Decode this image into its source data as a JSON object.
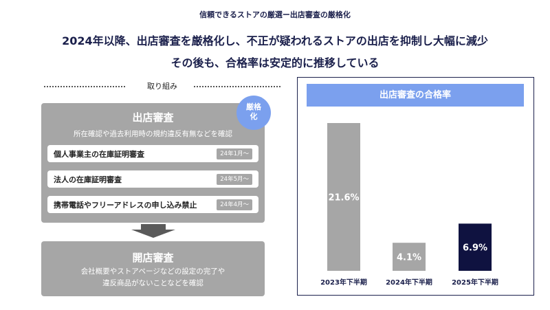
{
  "header": {
    "top_label": "信頼できるストアの厳選ー出店審査の厳格化",
    "headline_line1": "2024年以降、出店審査を厳格化し、不正が疑われるストアの出店を抑制し大幅に減少",
    "headline_line2": "その後も、合格率は安定的に推移している"
  },
  "left": {
    "section_label": "取り組み",
    "badge": [
      "厳格",
      "化"
    ],
    "main_box": {
      "title": "出店審査",
      "subtitle": "所在確認や過去利用時の規約違反有無などを確認",
      "items": [
        {
          "label": "個人事業主の在庫証明審査",
          "date": "24年1月〜"
        },
        {
          "label": "法人の在庫証明審査",
          "date": "24年5月〜"
        },
        {
          "label": "携帯電話やフリーアドレスの申し込み禁止",
          "date": "24年4月〜"
        }
      ]
    },
    "bottom_box": {
      "title": "開店審査",
      "desc_line1": "会社概要やストアページなどの設定の完了や",
      "desc_line2": "違反商品がないことなどを確認"
    }
  },
  "chart_data": {
    "type": "bar",
    "title": "出店審査の合格率",
    "categories": [
      "2023年下半期",
      "2024年下半期",
      "2025年下半期"
    ],
    "values": [
      21.6,
      4.1,
      6.9
    ],
    "value_labels": [
      "21.6%",
      "4.1%",
      "6.9%"
    ],
    "unit": "%",
    "ylim": [
      0,
      21.6
    ],
    "grid": false,
    "colors": [
      "#a6a6a6",
      "#a6a6a6",
      "#0f1240"
    ]
  }
}
